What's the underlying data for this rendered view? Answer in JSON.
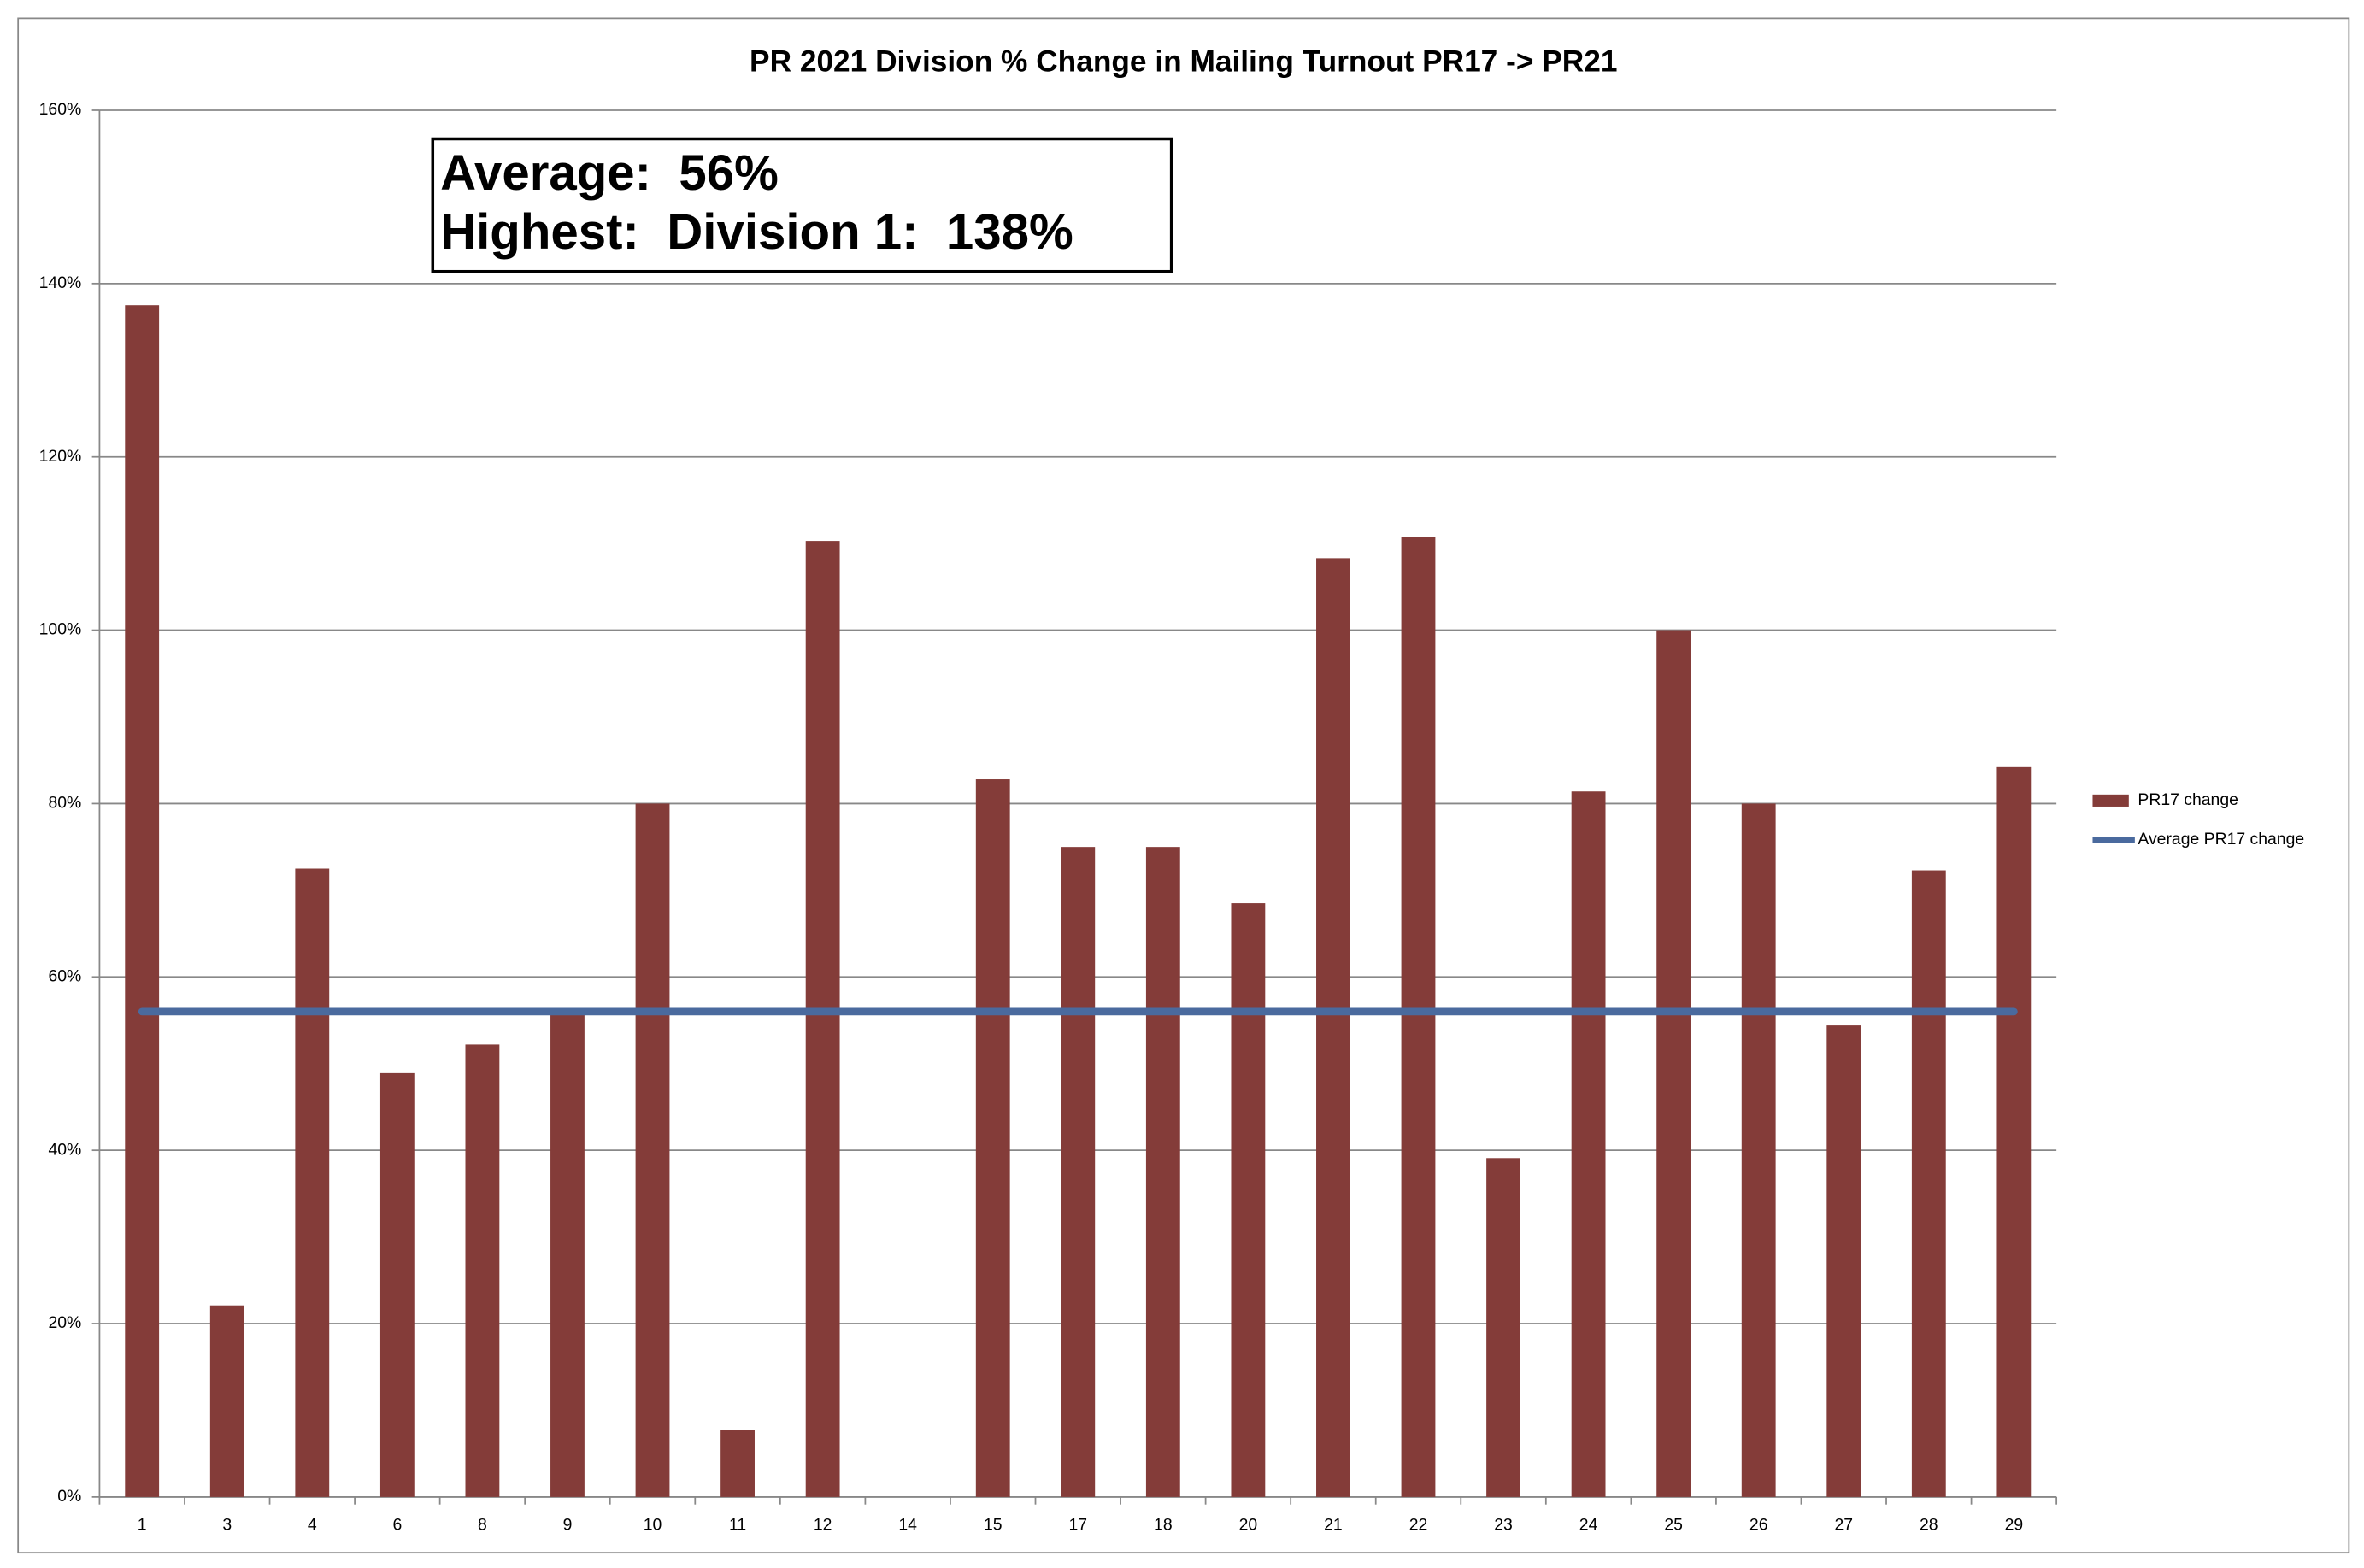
{
  "chart_data": {
    "type": "bar",
    "title": "PR 2021 Division % Change in Mailing Turnout PR17 -> PR21",
    "annotations": [
      "Average:  56%",
      "Highest:  Division 1:  138%"
    ],
    "categories": [
      "1",
      "3",
      "4",
      "6",
      "8",
      "9",
      "10",
      "11",
      "12",
      "14",
      "15",
      "17",
      "18",
      "20",
      "21",
      "22",
      "23",
      "24",
      "25",
      "26",
      "27",
      "28",
      "29"
    ],
    "series": [
      {
        "name": "PR17 change",
        "type": "bar",
        "color": "#843c39",
        "values": [
          137.5,
          22.1,
          72.5,
          48.9,
          52.2,
          55.8,
          80,
          7.7,
          110.3,
          0,
          82.8,
          75,
          75,
          68.5,
          108.3,
          110.8,
          39.1,
          81.4,
          100,
          80,
          54.4,
          72.3,
          84.2
        ]
      },
      {
        "name": "Average PR17 change",
        "type": "line",
        "color": "#4a6a9e",
        "values": [
          56,
          56,
          56,
          56,
          56,
          56,
          56,
          56,
          56,
          56,
          56,
          56,
          56,
          56,
          56,
          56,
          56,
          56,
          56,
          56,
          56,
          56,
          56
        ]
      }
    ],
    "ylim": [
      0,
      160
    ],
    "yticks": [
      {
        "value": 0,
        "label": "0%"
      },
      {
        "value": 20,
        "label": "20%"
      },
      {
        "value": 40,
        "label": "40%"
      },
      {
        "value": 60,
        "label": "60%"
      },
      {
        "value": 80,
        "label": "80%"
      },
      {
        "value": 100,
        "label": "100%"
      },
      {
        "value": 120,
        "label": "120%"
      },
      {
        "value": 140,
        "label": "140%"
      },
      {
        "value": 160,
        "label": "160%"
      }
    ],
    "grid": true,
    "legend": "right"
  }
}
